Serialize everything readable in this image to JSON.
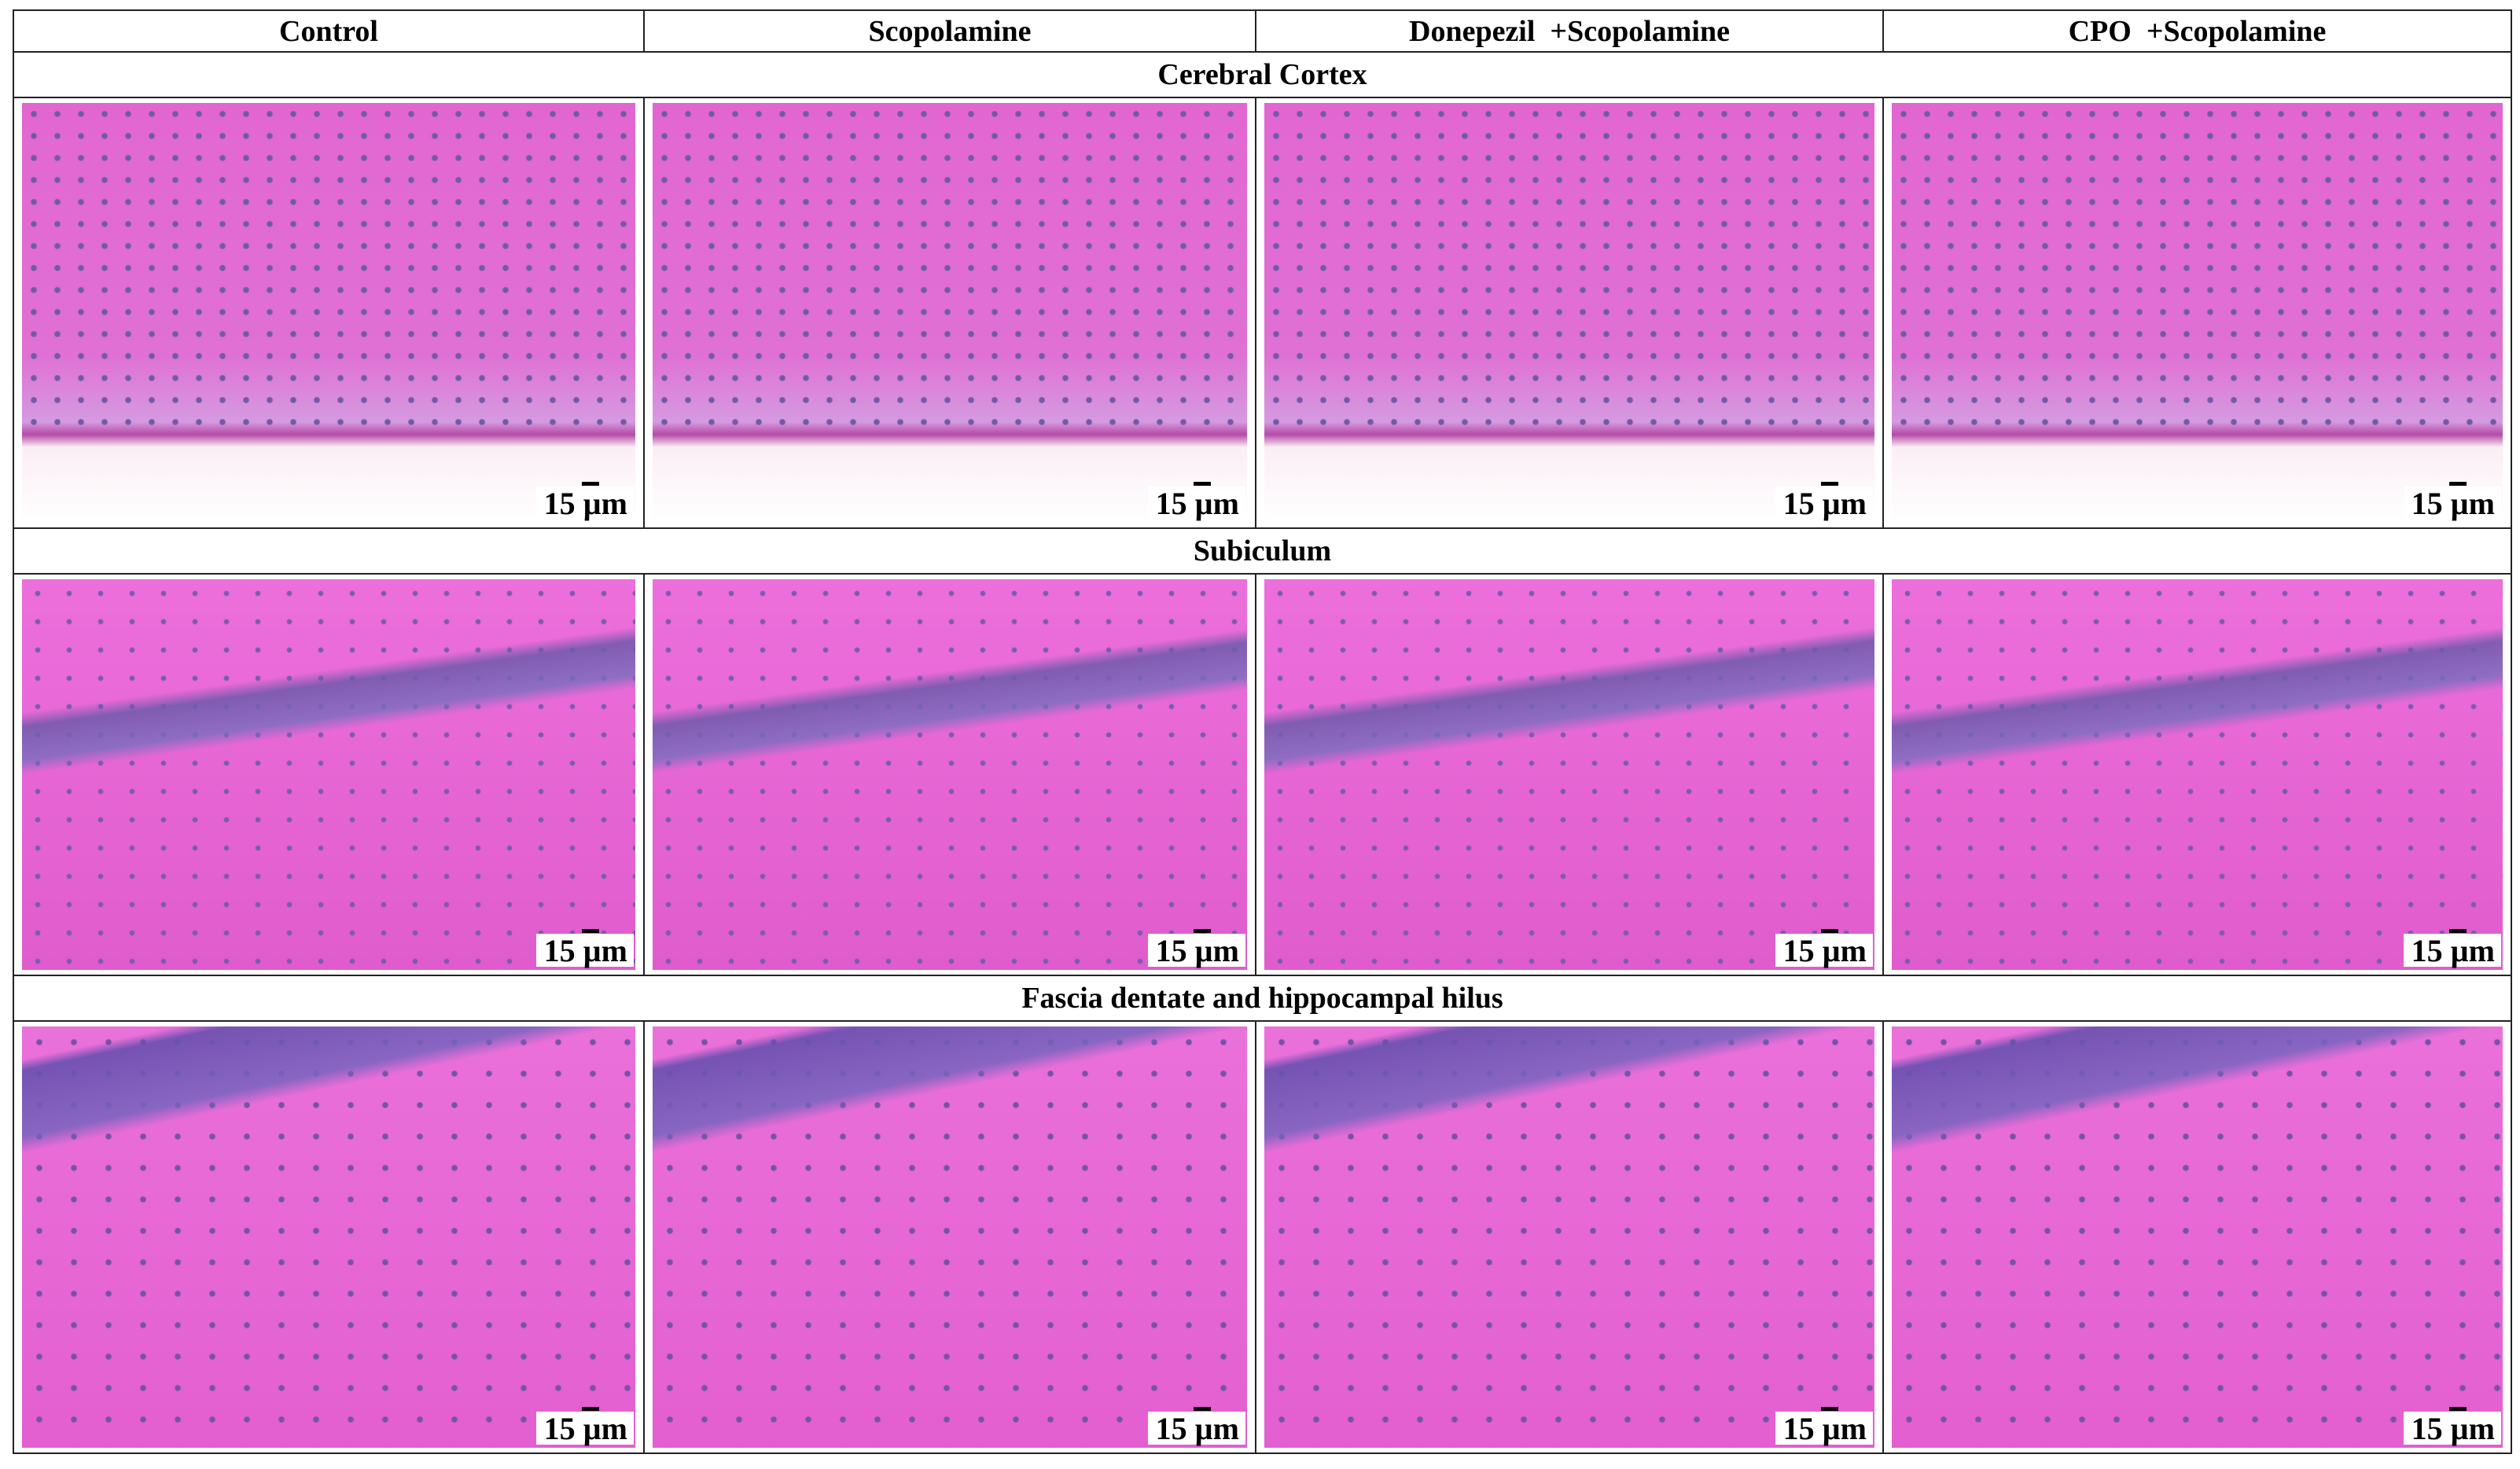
{
  "table": {
    "columns": [
      "Control",
      "Scopolamine",
      "Donepezil  +Scopolamine",
      "CPO  +Scopolamine"
    ],
    "sections": [
      {
        "title": "Cerebral Cortex",
        "scale_labels": [
          "15 µm",
          "15 µm",
          "15 µm",
          "15 µm"
        ]
      },
      {
        "title": "Subiculum",
        "scale_labels": [
          "15 µm",
          "15 µm",
          "15 µm",
          "15 µm"
        ]
      },
      {
        "title": "Fascia dentate and hippocampal hilus",
        "scale_labels": [
          "15 µm",
          "15 µm",
          "15 µm",
          "15 µm"
        ]
      }
    ]
  }
}
